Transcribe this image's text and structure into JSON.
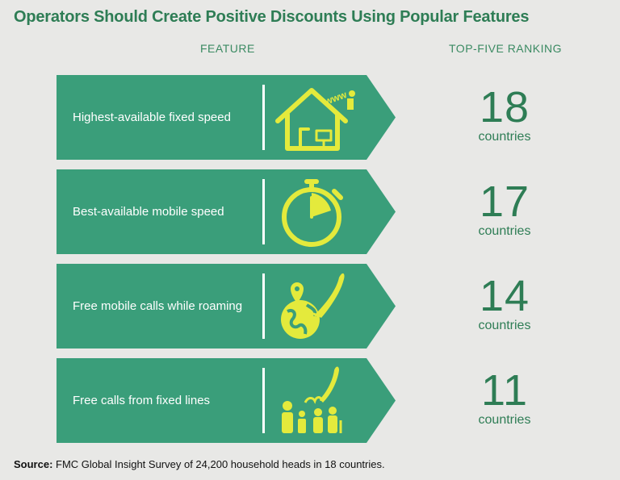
{
  "title": "Operators Should Create Positive Discounts Using Popular Features",
  "headers": {
    "feature": "FEATURE",
    "ranking": "TOP-FIVE RANKING"
  },
  "colors": {
    "banner": "#3a9e7a",
    "icon": "#e4ea3c",
    "accent": "#2e7d55"
  },
  "chart_data": {
    "type": "table",
    "title": "Operators Should Create Positive Discounts Using Popular Features",
    "columns": [
      "FEATURE",
      "TOP-FIVE RANKING"
    ],
    "rows": [
      {
        "feature": "Highest-available fixed speed",
        "value": 18,
        "unit": "countries",
        "icon": "house-wifi-icon"
      },
      {
        "feature": "Best-available mobile speed",
        "value": 17,
        "unit": "countries",
        "icon": "stopwatch-icon"
      },
      {
        "feature": "Free mobile calls while roaming",
        "value": 14,
        "unit": "countries",
        "icon": "globe-phone-icon"
      },
      {
        "feature": "Free calls from fixed lines",
        "value": 11,
        "unit": "countries",
        "icon": "family-phone-icon"
      }
    ]
  },
  "source": {
    "label": "Source:",
    "text": " FMC Global Insight Survey of 24,200 household heads in 18 countries."
  }
}
